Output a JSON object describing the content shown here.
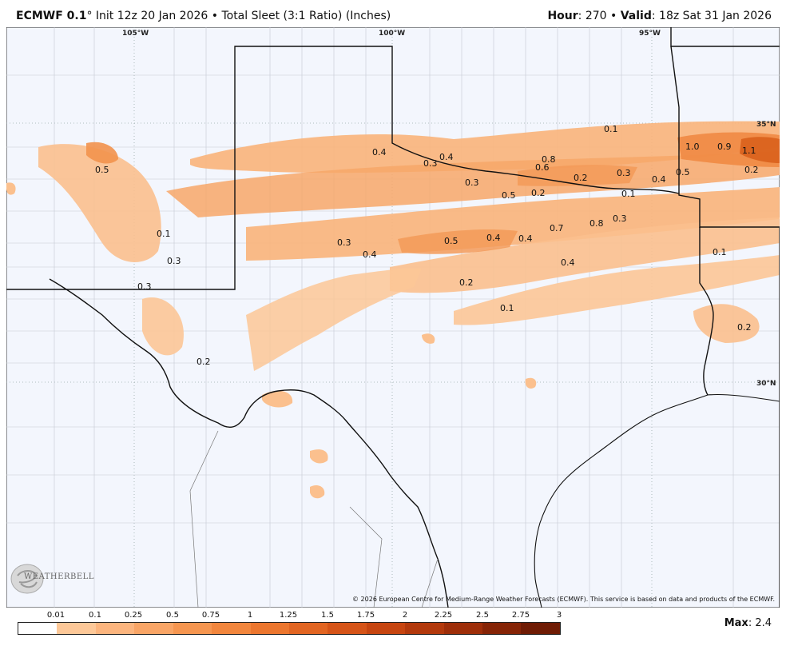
{
  "header": {
    "model": "ECMWF 0.1",
    "deg": "°",
    "init": "Init 12z 20 Jan 2026",
    "bullet": "•",
    "product": "Total Sleet (3:1 Ratio) (Inches)",
    "hour_label": "Hour",
    "hour_value": ": 270",
    "valid_label": "Valid",
    "valid_value": ": 18z Sat 31 Jan 2026"
  },
  "map": {
    "lon_labels": [
      "105°W",
      "100°W",
      "95°W"
    ],
    "lat_labels": [
      "35°N",
      "30°N"
    ],
    "value_labels": [
      "0.1",
      "0.4",
      "0.3",
      "0.4",
      "0.8",
      "0.6",
      "0.2",
      "0.3",
      "0.4",
      "0.5",
      "1.0",
      "0.9",
      "1.1",
      "0.2",
      "0.5",
      "0.3",
      "0.5",
      "0.2",
      "0.1",
      "0.1",
      "0.3",
      "0.3",
      "0.5",
      "0.4",
      "0.4",
      "0.7",
      "0.8",
      "0.3",
      "0.4",
      "0.1",
      "0.2",
      "0.1",
      "0.2",
      "0.2",
      "0.3",
      "0.4"
    ],
    "copyright": "© 2026 European Centre for Medium-Range Weather Forecasts (ECMWF). This service is based on data and products of the ECMWF.",
    "logo_text": "WEATHERBELL"
  },
  "colorbar": {
    "ticks": [
      "0.01",
      "0.1",
      "0.25",
      "0.5",
      "0.75",
      "1",
      "1.25",
      "1.5",
      "1.75",
      "2",
      "2.25",
      "2.5",
      "2.75",
      "3"
    ],
    "colors": [
      "#ffffff",
      "#fdc898",
      "#fcb57e",
      "#f9a566",
      "#f69650",
      "#f2863d",
      "#ec762e",
      "#e26522",
      "#d65418",
      "#c74510",
      "#b3390c",
      "#9e2e09",
      "#862406",
      "#6f1b04"
    ],
    "max_label": "Max",
    "max_value": ": 2.4"
  }
}
